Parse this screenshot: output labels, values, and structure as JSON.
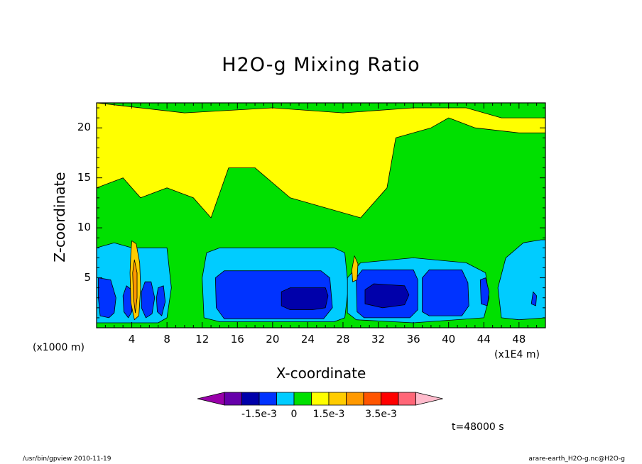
{
  "title": "H2O-g Mixing Ratio",
  "footer": {
    "left": "/usr/bin/gpview   2010-11-19",
    "right": "arare-earth_H2O-g.nc@H2O-g"
  },
  "time_label": "t=48000 s",
  "colors": {
    "background": "#ffffff",
    "levels": [
      "#9900aa",
      "#6600aa",
      "#0000aa",
      "#0033ff",
      "#00ccff",
      "#00e000",
      "#ffff00",
      "#ffcc00",
      "#ff9900",
      "#ff5500",
      "#ff0000",
      "#ff6677",
      "#ffbbcc"
    ]
  },
  "chart_data": {
    "type": "heatmap",
    "title": "H2O-g Mixing Ratio",
    "xlabel": "X-coordinate",
    "ylabel": "Z-coordinate",
    "x_unit_left": "(x1000 m)",
    "x_unit_right": "(x1E4 m)",
    "xlim": [
      0,
      51
    ],
    "ylim": [
      0,
      22.5
    ],
    "x_ticks": [
      4,
      8,
      12,
      16,
      20,
      24,
      28,
      32,
      36,
      40,
      44,
      48
    ],
    "x_tick_labels": [
      "4",
      "8",
      "12",
      "16",
      "20",
      "24",
      "28",
      "32",
      "36",
      "40",
      "44",
      "48"
    ],
    "y_ticks": [
      5,
      10,
      15,
      20
    ],
    "y_tick_labels": [
      "5",
      "10",
      "15",
      "20"
    ],
    "colorbar": {
      "labels": [
        "-1.5e-3",
        "0",
        "1.5e-3",
        "3.5e-3"
      ],
      "label_bin_positions": [
        3,
        5,
        7,
        10
      ],
      "bins": 13,
      "extend": "both"
    },
    "regions": [
      {
        "name": "upper-yellow",
        "level": 6,
        "points": [
          [
            0,
            14
          ],
          [
            3,
            15
          ],
          [
            5,
            13
          ],
          [
            8,
            14
          ],
          [
            11,
            13
          ],
          [
            13,
            11
          ],
          [
            15,
            16
          ],
          [
            18,
            16
          ],
          [
            22,
            13
          ],
          [
            26,
            12
          ],
          [
            30,
            11
          ],
          [
            33,
            14
          ],
          [
            34,
            19
          ],
          [
            38,
            20
          ],
          [
            40,
            21
          ],
          [
            43,
            20
          ],
          [
            48,
            19.5
          ],
          [
            51,
            19.5
          ],
          [
            51,
            21
          ],
          [
            46,
            21
          ],
          [
            42,
            22
          ],
          [
            36,
            22
          ],
          [
            28,
            21.5
          ],
          [
            20,
            22
          ],
          [
            10,
            21.5
          ],
          [
            0,
            22.5
          ]
        ]
      },
      {
        "name": "left-cyan",
        "level": 4,
        "points": [
          [
            0,
            0.5
          ],
          [
            0,
            8
          ],
          [
            2,
            8.5
          ],
          [
            4,
            8
          ],
          [
            6,
            8
          ],
          [
            8,
            8
          ],
          [
            8.5,
            4
          ],
          [
            8,
            1
          ],
          [
            7,
            0.5
          ],
          [
            4,
            0.5
          ],
          [
            2,
            0.5
          ]
        ]
      },
      {
        "name": "left-blue-1",
        "level": 3,
        "points": [
          [
            0.2,
            5
          ],
          [
            1.6,
            4.8
          ],
          [
            2.2,
            3
          ],
          [
            2,
            1.5
          ],
          [
            1.4,
            1
          ],
          [
            0.4,
            1.2
          ],
          [
            0.2,
            3
          ]
        ]
      },
      {
        "name": "left-blue-2",
        "level": 3,
        "points": [
          [
            3.4,
            4.2
          ],
          [
            4,
            3.8
          ],
          [
            4,
            1.6
          ],
          [
            3.6,
            1
          ],
          [
            3.1,
            1.6
          ],
          [
            3,
            3.2
          ]
        ]
      },
      {
        "name": "left-blue-3",
        "level": 3,
        "points": [
          [
            5.5,
            4.6
          ],
          [
            6.2,
            4.6
          ],
          [
            6.6,
            3
          ],
          [
            6.3,
            1.4
          ],
          [
            5.6,
            1
          ],
          [
            5.1,
            2
          ],
          [
            5.1,
            3.6
          ]
        ]
      },
      {
        "name": "left-blue-4",
        "level": 3,
        "points": [
          [
            7,
            4
          ],
          [
            7.6,
            4.2
          ],
          [
            7.8,
            2.6
          ],
          [
            7.4,
            1.2
          ],
          [
            6.9,
            1.6
          ],
          [
            6.8,
            3
          ]
        ]
      },
      {
        "name": "plume-orange",
        "level": 7,
        "points": [
          [
            4,
            8.7
          ],
          [
            4.5,
            8.4
          ],
          [
            4.9,
            6.5
          ],
          [
            5,
            4
          ],
          [
            4.8,
            1.2
          ],
          [
            4.3,
            0.8
          ],
          [
            3.9,
            2.5
          ],
          [
            3.8,
            5.5
          ],
          [
            3.9,
            7.5
          ]
        ]
      },
      {
        "name": "plume-dark-orange",
        "level": 8,
        "points": [
          [
            4.3,
            6.8
          ],
          [
            4.6,
            5.5
          ],
          [
            4.6,
            3
          ],
          [
            4.4,
            1.5
          ],
          [
            4.2,
            3
          ],
          [
            4.1,
            5.5
          ]
        ]
      },
      {
        "name": "center-left-cyan",
        "level": 4,
        "points": [
          [
            12.2,
            1
          ],
          [
            12,
            5
          ],
          [
            12.5,
            7.5
          ],
          [
            14,
            8
          ],
          [
            27,
            8
          ],
          [
            28.2,
            7.5
          ],
          [
            28.6,
            4
          ],
          [
            28.2,
            1
          ],
          [
            27,
            0.6
          ],
          [
            14,
            0.6
          ]
        ]
      },
      {
        "name": "center-left-blue",
        "level": 3,
        "points": [
          [
            13.6,
            2
          ],
          [
            13.5,
            5
          ],
          [
            14.5,
            5.7
          ],
          [
            25.5,
            5.7
          ],
          [
            26.5,
            5
          ],
          [
            26.8,
            2
          ],
          [
            25.8,
            0.9
          ],
          [
            14.5,
            0.9
          ]
        ]
      },
      {
        "name": "center-left-darkblue",
        "level": 2,
        "points": [
          [
            21,
            2.2
          ],
          [
            21,
            3.6
          ],
          [
            22,
            4
          ],
          [
            26,
            4
          ],
          [
            26.3,
            3.2
          ],
          [
            26,
            2
          ],
          [
            24.5,
            1.8
          ],
          [
            22,
            1.8
          ]
        ]
      },
      {
        "name": "center-right-cyan",
        "level": 4,
        "points": [
          [
            28.5,
            1.5
          ],
          [
            28.5,
            5
          ],
          [
            30,
            6.5
          ],
          [
            36,
            7
          ],
          [
            42,
            6.5
          ],
          [
            44.2,
            5.5
          ],
          [
            44.6,
            3
          ],
          [
            44,
            1
          ],
          [
            36,
            0.5
          ],
          [
            29.5,
            0.8
          ]
        ]
      },
      {
        "name": "center-right-blue-a",
        "level": 3,
        "points": [
          [
            29.6,
            1.6
          ],
          [
            29.5,
            5
          ],
          [
            30.2,
            5.8
          ],
          [
            36,
            5.8
          ],
          [
            36.5,
            4.8
          ],
          [
            36.5,
            1.8
          ],
          [
            35.6,
            1
          ],
          [
            30.4,
            1
          ]
        ]
      },
      {
        "name": "center-right-blue-b",
        "level": 3,
        "points": [
          [
            37,
            1.6
          ],
          [
            37,
            5
          ],
          [
            37.8,
            5.8
          ],
          [
            41.5,
            5.8
          ],
          [
            42.2,
            4.5
          ],
          [
            42.3,
            2.2
          ],
          [
            41.5,
            1.2
          ],
          [
            37.8,
            1.2
          ]
        ]
      },
      {
        "name": "center-right-darkblue",
        "level": 2,
        "points": [
          [
            30.5,
            2.4
          ],
          [
            30.5,
            3.8
          ],
          [
            31.5,
            4.4
          ],
          [
            35,
            4.2
          ],
          [
            35.5,
            3.3
          ],
          [
            35,
            2.3
          ],
          [
            32.5,
            2
          ]
        ]
      },
      {
        "name": "right-cyan",
        "level": 4,
        "points": [
          [
            46,
            1
          ],
          [
            45.6,
            4
          ],
          [
            46.5,
            7
          ],
          [
            48.5,
            8.5
          ],
          [
            50.5,
            8.8
          ],
          [
            51,
            8.8
          ],
          [
            51,
            1
          ],
          [
            48,
            0.8
          ]
        ]
      },
      {
        "name": "right-blue",
        "level": 3,
        "points": [
          [
            49.4,
            2.4
          ],
          [
            49.6,
            3.6
          ],
          [
            50,
            3.2
          ],
          [
            49.9,
            2.2
          ]
        ]
      },
      {
        "name": "small-blue-44",
        "level": 3,
        "points": [
          [
            43.7,
            2.4
          ],
          [
            43.6,
            4.8
          ],
          [
            44.2,
            5
          ],
          [
            44.6,
            3.6
          ],
          [
            44.4,
            2.2
          ]
        ]
      },
      {
        "name": "yellow-patch-29",
        "level": 7,
        "points": [
          [
            29,
            5.8
          ],
          [
            29.3,
            7.2
          ],
          [
            29.7,
            6.4
          ],
          [
            29.6,
            4.8
          ],
          [
            29.1,
            4.6
          ]
        ]
      }
    ]
  }
}
